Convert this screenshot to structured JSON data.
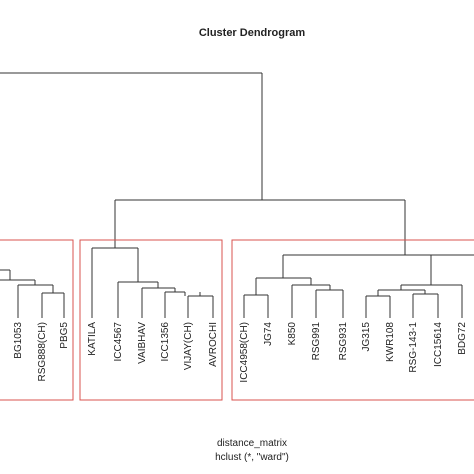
{
  "title": "Cluster Dendrogram",
  "groups": [
    {
      "leaves": [
        "BG1053",
        "RSG888(CH)",
        "PBG5"
      ]
    },
    {
      "leaves": [
        "KATILA",
        "ICC4567",
        "VAIBHAV",
        "ICC1356",
        "VIJAY(CH)",
        "AVROCHI"
      ]
    },
    {
      "leaves": [
        "ICC4958(CH)",
        "JG74",
        "K850",
        "RSG991",
        "RSG931",
        "JG315",
        "KWR108",
        "RSG-143-1",
        "ICC15614",
        "BDG72"
      ]
    }
  ],
  "xlabel": "distance_matrix",
  "sub": "hclust (*, \"ward\")"
}
